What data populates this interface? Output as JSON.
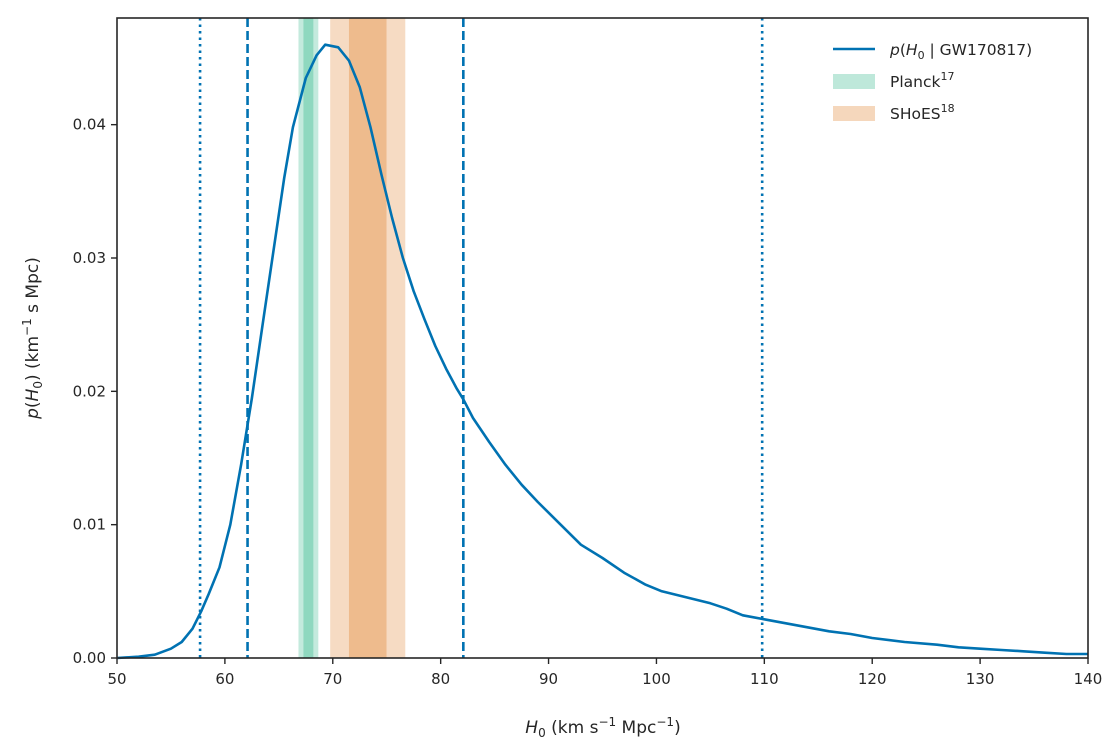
{
  "colors": {
    "curve": "#0072b2",
    "planck_band": "#64c8a6",
    "shoes_band": "#e8a060",
    "axis": "#262626",
    "background": "#ffffff"
  },
  "chart_data": {
    "type": "line",
    "xlabel": "H_0 (km s^-1 Mpc^-1)",
    "ylabel": "p(H_0) (km^-1 s Mpc)",
    "xlim": [
      50,
      140
    ],
    "ylim": [
      0,
      0.048
    ],
    "xticks": [
      50,
      60,
      70,
      80,
      90,
      100,
      110,
      120,
      130,
      140
    ],
    "yticks": [
      0.0,
      0.01,
      0.02,
      0.03,
      0.04
    ],
    "ytick_labels": [
      "0.00",
      "0.01",
      "0.02",
      "0.03",
      "0.04"
    ],
    "grid": false,
    "legend_position": "top-right",
    "series": [
      {
        "name": "p(H_0 | GW170817)",
        "x": [
          50,
          52,
          53.5,
          55,
          56,
          57,
          57.8,
          58.5,
          59.5,
          60.5,
          61.5,
          62.5,
          63.5,
          64.5,
          65.5,
          66.3,
          67.5,
          68.5,
          69.3,
          70.5,
          71.5,
          72.5,
          73.5,
          74.5,
          75.5,
          76.5,
          77.5,
          78.5,
          79.5,
          80.5,
          81.5,
          82.1,
          83,
          84.5,
          86,
          87.5,
          89,
          91,
          93,
          95,
          97,
          99,
          100.5,
          102,
          103.5,
          105,
          106.5,
          108,
          110,
          112,
          114,
          116,
          118,
          120,
          123,
          126,
          128,
          130,
          132,
          134,
          136,
          138,
          140
        ],
        "y": [
          0,
          0.0001,
          0.00025,
          0.0007,
          0.0012,
          0.0022,
          0.0035,
          0.0048,
          0.0068,
          0.01,
          0.0145,
          0.0195,
          0.025,
          0.0305,
          0.036,
          0.0398,
          0.0435,
          0.0452,
          0.046,
          0.0458,
          0.0448,
          0.0428,
          0.0398,
          0.0363,
          0.033,
          0.03,
          0.0275,
          0.0254,
          0.0234,
          0.0217,
          0.0202,
          0.0194,
          0.018,
          0.0162,
          0.0145,
          0.013,
          0.0117,
          0.0101,
          0.0085,
          0.0075,
          0.0064,
          0.0055,
          0.005,
          0.0047,
          0.0044,
          0.0041,
          0.0037,
          0.0032,
          0.0029,
          0.0026,
          0.0023,
          0.002,
          0.0018,
          0.0015,
          0.0012,
          0.001,
          0.0008,
          0.0007,
          0.0006,
          0.0005,
          0.0004,
          0.0003,
          0.0003
        ]
      }
    ],
    "vertical_lines": [
      {
        "x": 62.1,
        "style": "dashed"
      },
      {
        "x": 82.1,
        "style": "dashed"
      },
      {
        "x": 57.7,
        "style": "dotted"
      },
      {
        "x": 109.8,
        "style": "dotted"
      }
    ],
    "bands": [
      {
        "name": "Planck",
        "ref": "17",
        "center": 67.74,
        "inner": [
          67.28,
          68.2
        ],
        "outer": [
          66.82,
          68.66
        ]
      },
      {
        "name": "SHoES",
        "ref": "18",
        "center": 73.24,
        "inner": [
          71.5,
          74.98
        ],
        "outer": [
          69.76,
          76.72
        ]
      }
    ]
  }
}
